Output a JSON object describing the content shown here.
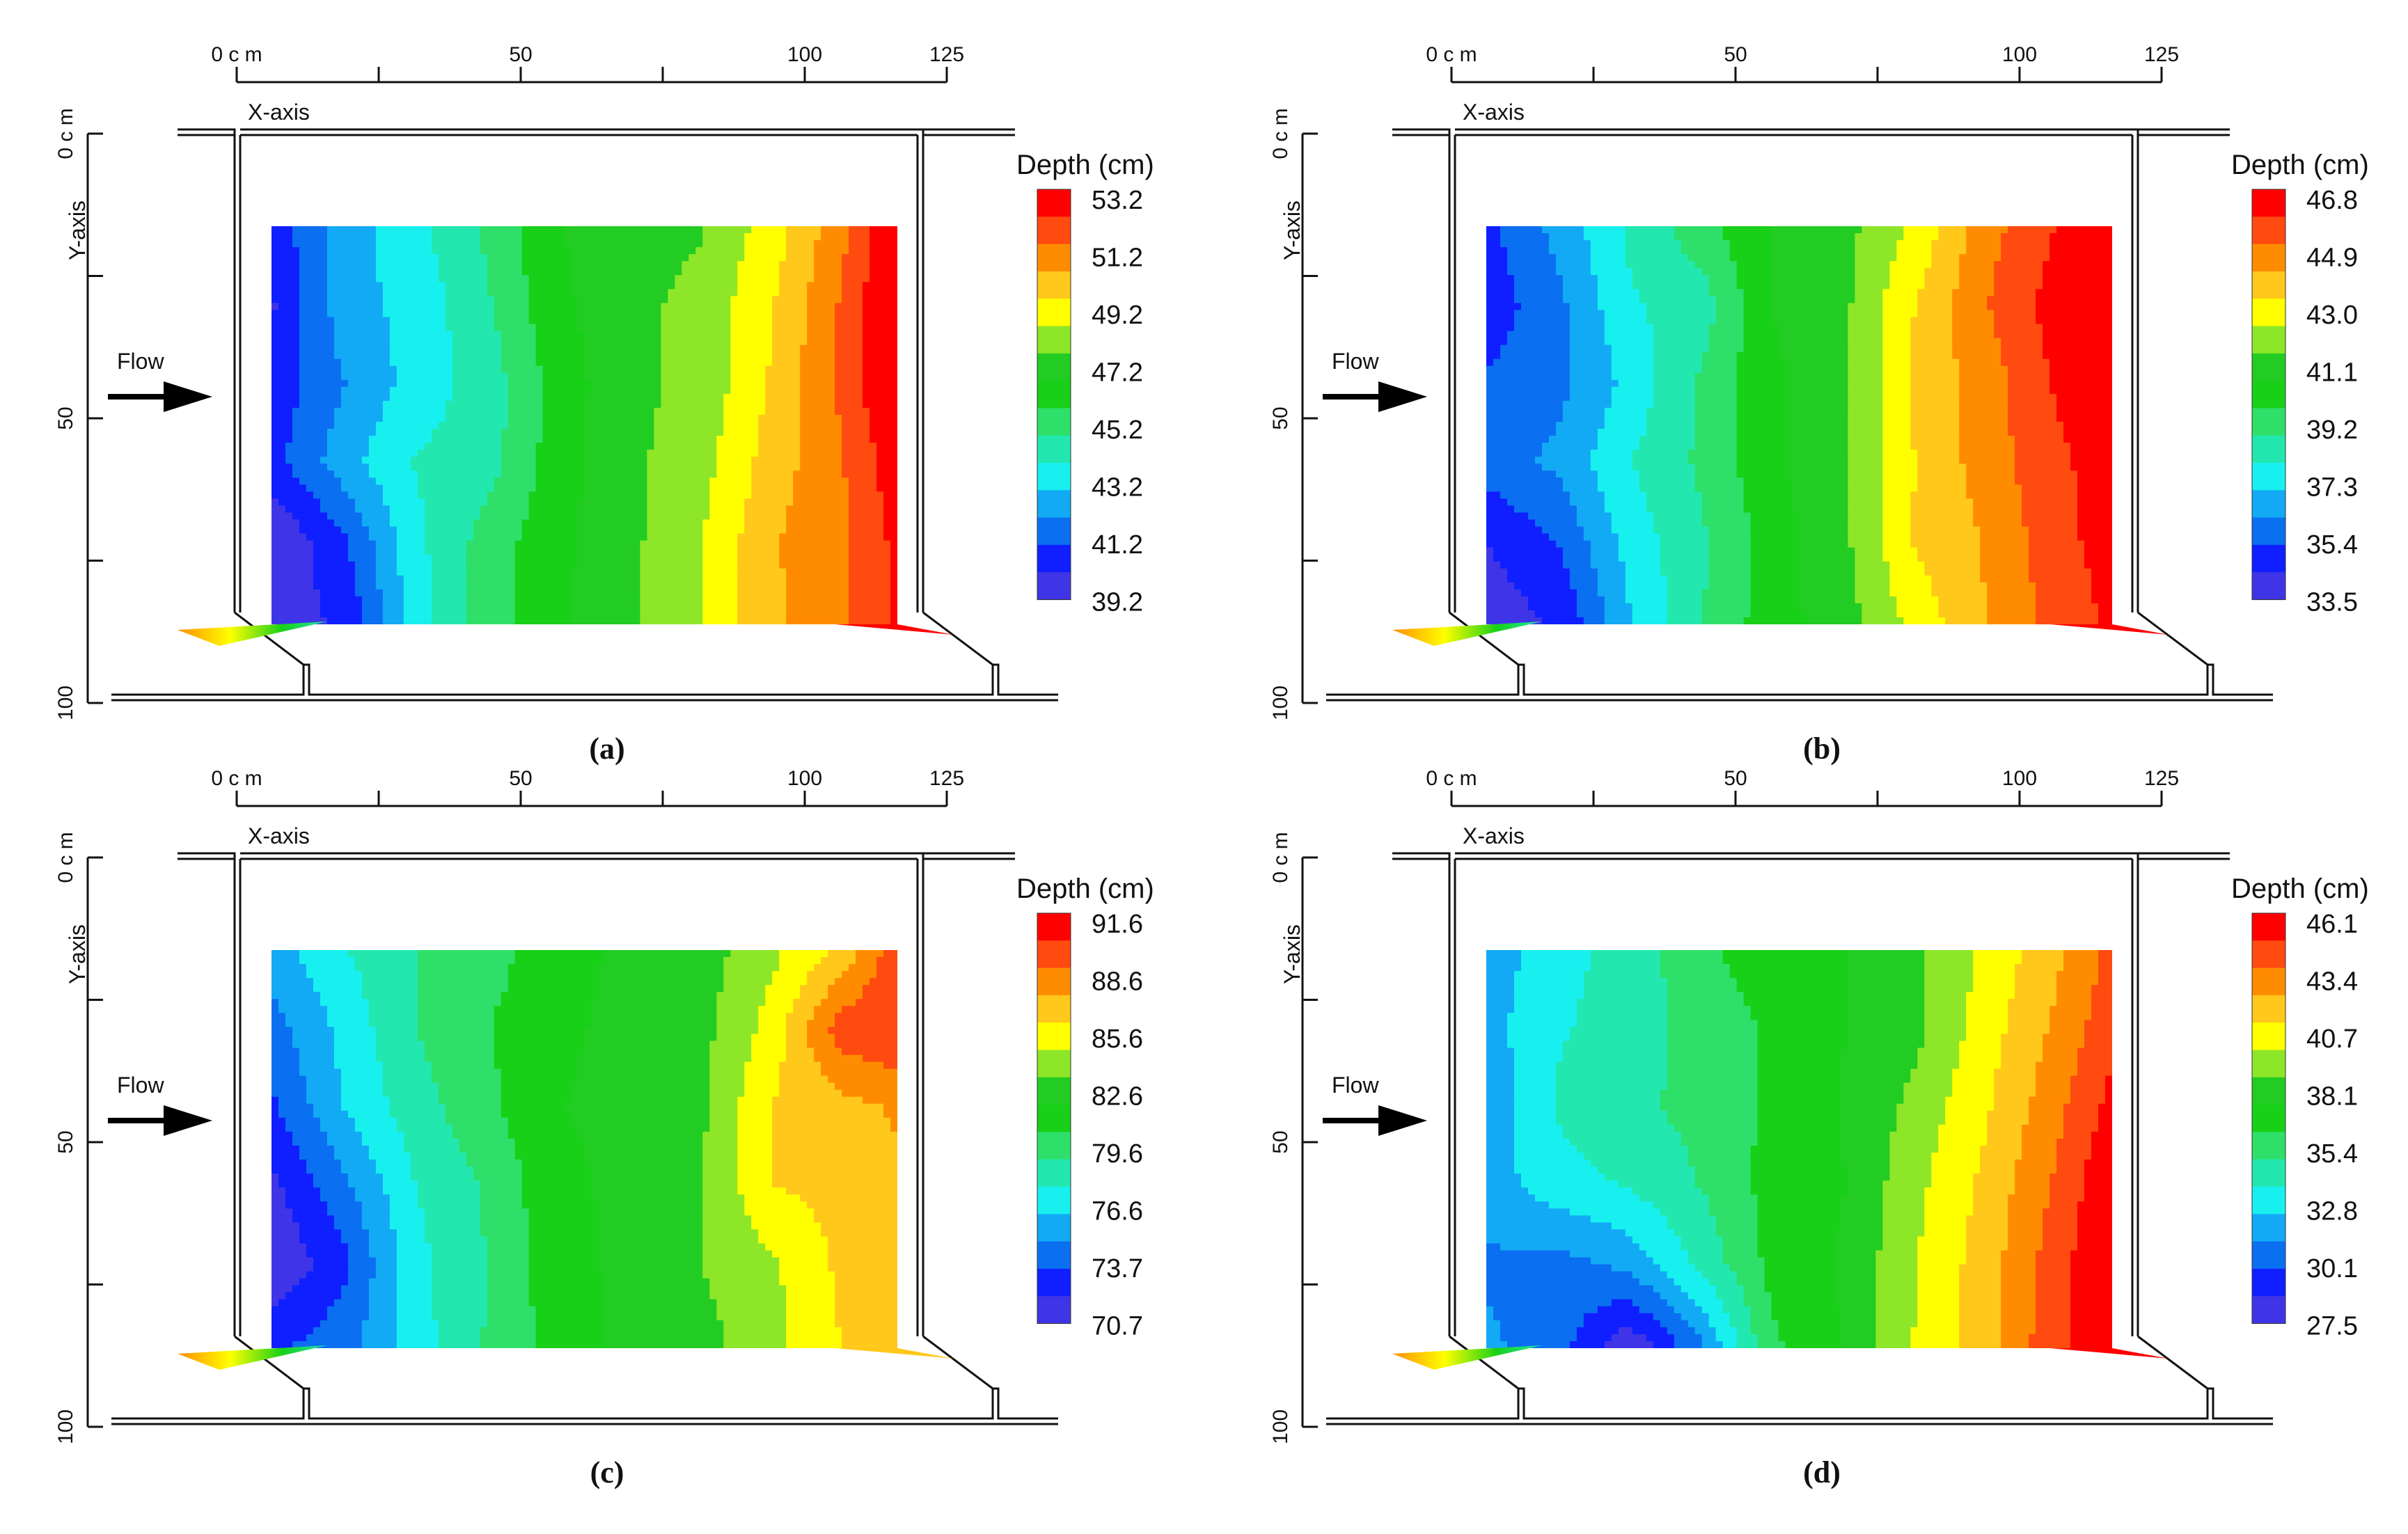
{
  "colors": {
    "scale": [
      "#3f35e6",
      "#0f1fff",
      "#0a6ff0",
      "#12aaf5",
      "#18f0f0",
      "#22e8b0",
      "#2ee06a",
      "#18d018",
      "#22cc22",
      "#8ee628",
      "#ffff00",
      "#ffc81a",
      "#ff8c00",
      "#ff4a10",
      "#ff0000"
    ],
    "wall": "#111111",
    "arrow": "#000000"
  },
  "chart_data": [
    {
      "type": "heatmap",
      "panel_label": "(a)",
      "x_axis_title": "X-axis",
      "y_axis_title": "Y-axis",
      "flow_label": "Flow",
      "x_ticks": [
        {
          "value": 0,
          "label": "0 c m"
        },
        {
          "value": 25,
          "label": ""
        },
        {
          "value": 50,
          "label": "50"
        },
        {
          "value": 75,
          "label": ""
        },
        {
          "value": 100,
          "label": "100"
        },
        {
          "value": 125,
          "label": "125"
        }
      ],
      "y_ticks": [
        {
          "value": 0,
          "label": "0 c m"
        },
        {
          "value": 25,
          "label": ""
        },
        {
          "value": 50,
          "label": "50"
        },
        {
          "value": 75,
          "label": ""
        },
        {
          "value": 100,
          "label": "100"
        }
      ],
      "xlim": [
        0,
        125
      ],
      "ylim": [
        0,
        100
      ],
      "legend": {
        "title": "Depth (cm)",
        "labels": [
          "53.2",
          "51.2",
          "49.2",
          "47.2",
          "45.2",
          "43.2",
          "41.2",
          "39.2"
        ]
      },
      "depth_range": [
        39.2,
        53.2
      ],
      "grid_x": [
        6,
        19,
        31,
        44,
        56,
        69,
        81,
        94,
        106,
        116
      ],
      "grid_y": [
        19,
        32,
        45,
        58,
        71,
        85
      ],
      "values": [
        [
          40.5,
          42.5,
          43.6,
          45.0,
          46.6,
          47.4,
          47.5,
          49.0,
          51.0,
          53.3
        ],
        [
          40.0,
          42.6,
          43.2,
          44.7,
          46.4,
          47.4,
          47.8,
          49.4,
          51.4,
          53.5
        ],
        [
          40.4,
          42.0,
          43.3,
          44.3,
          46.1,
          47.4,
          47.8,
          49.6,
          51.5,
          53.5
        ],
        [
          40.7,
          42.6,
          43.9,
          44.4,
          46.2,
          47.4,
          48.1,
          49.9,
          51.2,
          52.9
        ],
        [
          39.2,
          41.0,
          43.6,
          45.2,
          46.4,
          47.4,
          48.4,
          50.3,
          51.2,
          52.5
        ],
        [
          39.6,
          40.3,
          43.3,
          45.3,
          46.5,
          47.4,
          48.5,
          50.2,
          51.1,
          52.4
        ]
      ]
    },
    {
      "type": "heatmap",
      "panel_label": "(b)",
      "x_axis_title": "X-axis",
      "y_axis_title": "Y-axis",
      "flow_label": "Flow",
      "x_ticks": [
        {
          "value": 0,
          "label": "0 c m"
        },
        {
          "value": 25,
          "label": ""
        },
        {
          "value": 50,
          "label": "50"
        },
        {
          "value": 75,
          "label": ""
        },
        {
          "value": 100,
          "label": "100"
        },
        {
          "value": 125,
          "label": "125"
        }
      ],
      "y_ticks": [
        {
          "value": 0,
          "label": "0 c m"
        },
        {
          "value": 25,
          "label": ""
        },
        {
          "value": 50,
          "label": "50"
        },
        {
          "value": 75,
          "label": ""
        },
        {
          "value": 100,
          "label": "100"
        }
      ],
      "xlim": [
        0,
        125
      ],
      "ylim": [
        0,
        100
      ],
      "legend": {
        "title": "Depth (cm)",
        "labels": [
          "46.8",
          "44.9",
          "43.0",
          "41.1",
          "39.2",
          "37.3",
          "35.4",
          "33.5"
        ]
      },
      "depth_range": [
        33.5,
        46.8
      ],
      "grid_x": [
        6,
        19,
        31,
        44,
        56,
        69,
        81,
        94,
        106,
        116
      ],
      "grid_y": [
        19,
        32,
        45,
        58,
        71,
        85
      ],
      "values": [
        [
          35.0,
          36.5,
          38.1,
          39.4,
          40.6,
          41.2,
          42.5,
          44.7,
          45.9,
          46.8
        ],
        [
          34.7,
          36.0,
          37.8,
          38.4,
          40.6,
          41.3,
          43.2,
          45.0,
          46.3,
          47.0
        ],
        [
          35.4,
          35.9,
          37.3,
          39.0,
          40.4,
          41.3,
          43.4,
          44.6,
          46.0,
          46.9
        ],
        [
          35.7,
          36.4,
          37.9,
          39.0,
          40.4,
          41.4,
          43.2,
          44.6,
          45.7,
          46.4
        ],
        [
          34.4,
          35.4,
          37.4,
          38.7,
          40.1,
          41.3,
          43.3,
          44.2,
          45.6,
          46.3
        ],
        [
          33.8,
          34.5,
          36.9,
          38.8,
          40.2,
          41.1,
          42.6,
          44.2,
          45.3,
          46.1
        ]
      ]
    },
    {
      "type": "heatmap",
      "panel_label": "(c)",
      "x_axis_title": "X-axis",
      "y_axis_title": "Y-axis",
      "flow_label": "Flow",
      "x_ticks": [
        {
          "value": 0,
          "label": "0 c m"
        },
        {
          "value": 25,
          "label": ""
        },
        {
          "value": 50,
          "label": "50"
        },
        {
          "value": 75,
          "label": ""
        },
        {
          "value": 100,
          "label": "100"
        },
        {
          "value": 125,
          "label": "125"
        }
      ],
      "y_ticks": [
        {
          "value": 0,
          "label": "0 c m"
        },
        {
          "value": 25,
          "label": ""
        },
        {
          "value": 50,
          "label": "50"
        },
        {
          "value": 75,
          "label": ""
        },
        {
          "value": 100,
          "label": "100"
        }
      ],
      "xlim": [
        0,
        125
      ],
      "ylim": [
        0,
        100
      ],
      "legend": {
        "title": "Depth (cm)",
        "labels": [
          "91.6",
          "88.6",
          "85.6",
          "82.6",
          "79.6",
          "76.6",
          "73.7",
          "70.7"
        ]
      },
      "depth_range": [
        70.7,
        91.6
      ],
      "grid_x": [
        6,
        19,
        31,
        44,
        56,
        69,
        81,
        94,
        106,
        116
      ],
      "grid_y": [
        19,
        32,
        45,
        58,
        71,
        85
      ],
      "values": [
        [
          75.6,
          77.6,
          79.0,
          79.9,
          81.2,
          82.2,
          82.5,
          84.3,
          86.2,
          89.8
        ],
        [
          74.2,
          76.8,
          79.0,
          80.4,
          81.6,
          82.2,
          82.7,
          85.2,
          89.6,
          90.2
        ],
        [
          73.2,
          76.4,
          78.4,
          80.1,
          81.8,
          82.2,
          82.8,
          86.1,
          86.9,
          87.6
        ],
        [
          71.7,
          74.6,
          77.6,
          79.3,
          81.5,
          82.2,
          83.1,
          86.0,
          86.5,
          87.2
        ],
        [
          70.7,
          73.2,
          77.2,
          79.1,
          81.3,
          82.2,
          83.2,
          84.4,
          86.3,
          87.0
        ],
        [
          73.2,
          74.4,
          77.0,
          79.2,
          81.0,
          82.2,
          82.6,
          84.2,
          86.0,
          86.7
        ]
      ]
    },
    {
      "type": "heatmap",
      "panel_label": "(d)",
      "x_axis_title": "X-axis",
      "y_axis_title": "Y-axis",
      "flow_label": "Flow",
      "x_ticks": [
        {
          "value": 0,
          "label": "0 c m"
        },
        {
          "value": 25,
          "label": ""
        },
        {
          "value": 50,
          "label": "50"
        },
        {
          "value": 75,
          "label": ""
        },
        {
          "value": 100,
          "label": "100"
        },
        {
          "value": 125,
          "label": "125"
        }
      ],
      "y_ticks": [
        {
          "value": 0,
          "label": "0 c m"
        },
        {
          "value": 25,
          "label": ""
        },
        {
          "value": 50,
          "label": "50"
        },
        {
          "value": 75,
          "label": ""
        },
        {
          "value": 100,
          "label": "100"
        }
      ],
      "xlim": [
        0,
        125
      ],
      "ylim": [
        0,
        100
      ],
      "legend": {
        "title": "Depth (cm)",
        "labels": [
          "46.1",
          "43.4",
          "40.7",
          "38.1",
          "35.4",
          "32.8",
          "30.1",
          "27.5"
        ]
      },
      "depth_range": [
        27.5,
        46.1
      ],
      "grid_x": [
        6,
        19,
        31,
        44,
        56,
        69,
        81,
        94,
        106,
        116
      ],
      "grid_y": [
        19,
        32,
        45,
        58,
        71,
        85
      ],
      "values": [
        [
          31.7,
          33.3,
          34.2,
          35.9,
          37.0,
          37.4,
          38.3,
          40.2,
          42.1,
          44.0
        ],
        [
          32.0,
          33.6,
          34.2,
          35.5,
          36.3,
          37.4,
          38.2,
          40.6,
          42.6,
          44.5
        ],
        [
          31.5,
          33.9,
          34.6,
          35.4,
          36.4,
          37.5,
          39.0,
          41.0,
          43.2,
          45.3
        ],
        [
          31.9,
          33.2,
          33.8,
          35.0,
          36.6,
          37.4,
          39.5,
          41.5,
          43.8,
          46.0
        ],
        [
          31.0,
          30.8,
          31.6,
          34.1,
          36.5,
          37.6,
          39.8,
          41.8,
          44.3,
          46.2
        ],
        [
          31.5,
          30.4,
          27.6,
          31.0,
          35.9,
          37.5,
          39.9,
          42.0,
          44.5,
          46.1
        ]
      ]
    }
  ]
}
